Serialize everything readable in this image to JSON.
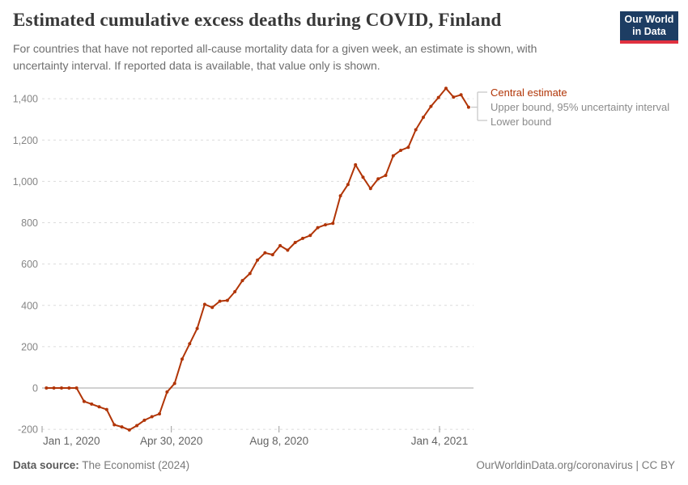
{
  "header": {
    "title": "Estimated cumulative excess deaths during COVID, Finland",
    "subtitle": "For countries that have not reported all-cause mortality data for a given week, an estimate is shown, with uncertainty interval. If reported data is available, that value only is shown.",
    "logo": {
      "line1": "Our World",
      "line2": "in Data"
    }
  },
  "legend": {
    "central": "Central estimate",
    "upper": "Upper bound, 95% uncertainty interval",
    "lower": "Lower bound"
  },
  "footer": {
    "source_label": "Data source:",
    "source_value": " The Economist (2024)",
    "right": "OurWorldinData.org/coronavirus | CC BY"
  },
  "colors": {
    "line": "#b13507",
    "grid": "#dcdcdc",
    "zero_line": "#a3a3a3",
    "y_axis_text": "#858585",
    "x_axis_text": "#636363",
    "tick_mark": "#999999",
    "connector": "#c9c9c9"
  },
  "chart_data": {
    "type": "line",
    "title": "Estimated cumulative excess deaths during COVID, Finland",
    "ylabel": "Cumulative excess deaths",
    "grid": "horizontal-dashed",
    "legend_position": "right-of-line-end",
    "ylim": [
      -200,
      1450
    ],
    "y_ticks": [
      -200,
      0,
      200,
      400,
      600,
      800,
      1000,
      1200,
      1400
    ],
    "x_range": [
      "2020-01-01",
      "2021-02-06"
    ],
    "x_ticks": [
      {
        "label": "Jan 1, 2020",
        "date": "2020-01-01"
      },
      {
        "label": "Apr 30, 2020",
        "date": "2020-04-30"
      },
      {
        "label": "Aug 8, 2020",
        "date": "2020-08-08"
      },
      {
        "label": "Jan 4, 2021",
        "date": "2021-01-04"
      }
    ],
    "series": [
      {
        "name": "Central estimate",
        "dates": [
          "2020-01-05",
          "2020-01-12",
          "2020-01-19",
          "2020-01-26",
          "2020-02-02",
          "2020-02-09",
          "2020-02-16",
          "2020-02-23",
          "2020-03-01",
          "2020-03-08",
          "2020-03-15",
          "2020-03-22",
          "2020-03-29",
          "2020-04-05",
          "2020-04-12",
          "2020-04-19",
          "2020-04-26",
          "2020-05-03",
          "2020-05-10",
          "2020-05-17",
          "2020-05-24",
          "2020-05-31",
          "2020-06-07",
          "2020-06-14",
          "2020-06-21",
          "2020-06-28",
          "2020-07-05",
          "2020-07-12",
          "2020-07-19",
          "2020-07-26",
          "2020-08-02",
          "2020-08-09",
          "2020-08-16",
          "2020-08-23",
          "2020-08-30",
          "2020-09-06",
          "2020-09-13",
          "2020-09-20",
          "2020-09-27",
          "2020-10-04",
          "2020-10-11",
          "2020-10-18",
          "2020-10-25",
          "2020-11-01",
          "2020-11-08",
          "2020-11-15",
          "2020-11-22",
          "2020-11-29",
          "2020-12-06",
          "2020-12-13",
          "2020-12-20",
          "2020-12-27",
          "2021-01-03",
          "2021-01-10",
          "2021-01-17",
          "2021-01-24",
          "2021-01-31"
        ],
        "values": [
          0,
          0,
          0,
          0,
          0,
          -65,
          -78,
          -91,
          -104,
          -178,
          -188,
          -203,
          -182,
          -156,
          -139,
          -125,
          -19,
          22,
          140,
          214,
          288,
          405,
          390,
          420,
          424,
          466,
          520,
          554,
          619,
          654,
          645,
          689,
          667,
          704,
          724,
          738,
          776,
          790,
          797,
          930,
          985,
          1080,
          1020,
          965,
          1012,
          1029,
          1124,
          1150,
          1165,
          1250,
          1310,
          1363,
          1406,
          1450,
          1408,
          1419,
          1359
        ]
      }
    ]
  }
}
